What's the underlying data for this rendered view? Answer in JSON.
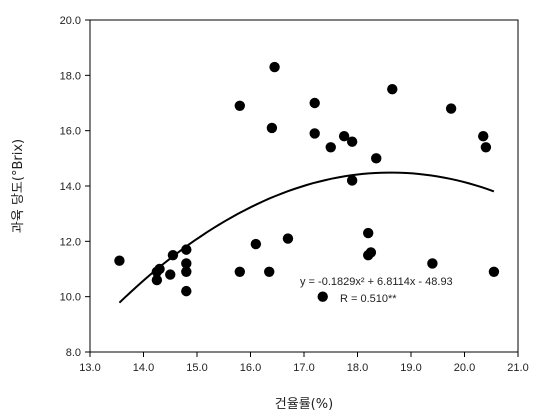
{
  "chart_data": {
    "type": "scatter",
    "title": "",
    "xlabel": "건율률(%)",
    "ylabel": "과육 당도(°Brix)",
    "xlim": [
      13.0,
      21.0
    ],
    "ylim": [
      8.0,
      20.0
    ],
    "x_ticks": [
      "13.0",
      "14.0",
      "15.0",
      "16.0",
      "17.0",
      "18.0",
      "19.0",
      "20.0",
      "21.0"
    ],
    "y_ticks": [
      "8.0",
      "10.0",
      "12.0",
      "14.0",
      "16.0",
      "18.0",
      "20.0"
    ],
    "grid": false,
    "legend": "none",
    "marker_color": "#000000",
    "series": [
      {
        "points": [
          {
            "x": 13.55,
            "y": 11.3
          },
          {
            "x": 14.25,
            "y": 10.9
          },
          {
            "x": 14.25,
            "y": 10.6
          },
          {
            "x": 14.3,
            "y": 11.0
          },
          {
            "x": 14.5,
            "y": 10.8
          },
          {
            "x": 14.55,
            "y": 11.5
          },
          {
            "x": 14.8,
            "y": 11.7
          },
          {
            "x": 14.8,
            "y": 11.2
          },
          {
            "x": 14.8,
            "y": 10.9
          },
          {
            "x": 14.8,
            "y": 10.2
          },
          {
            "x": 15.8,
            "y": 16.9
          },
          {
            "x": 15.8,
            "y": 10.9
          },
          {
            "x": 16.1,
            "y": 11.9
          },
          {
            "x": 16.35,
            "y": 10.9
          },
          {
            "x": 16.4,
            "y": 16.1
          },
          {
            "x": 16.45,
            "y": 18.3
          },
          {
            "x": 16.7,
            "y": 12.1
          },
          {
            "x": 17.2,
            "y": 17.0
          },
          {
            "x": 17.2,
            "y": 15.9
          },
          {
            "x": 17.35,
            "y": 10.0
          },
          {
            "x": 17.5,
            "y": 15.4
          },
          {
            "x": 17.75,
            "y": 15.8
          },
          {
            "x": 17.9,
            "y": 15.6
          },
          {
            "x": 17.9,
            "y": 14.2
          },
          {
            "x": 18.2,
            "y": 12.3
          },
          {
            "x": 18.2,
            "y": 11.5
          },
          {
            "x": 18.25,
            "y": 11.6
          },
          {
            "x": 18.35,
            "y": 15.0
          },
          {
            "x": 18.65,
            "y": 17.5
          },
          {
            "x": 19.4,
            "y": 11.2
          },
          {
            "x": 19.75,
            "y": 16.8
          },
          {
            "x": 20.35,
            "y": 15.8
          },
          {
            "x": 20.4,
            "y": 15.4
          },
          {
            "x": 20.55,
            "y": 10.9
          }
        ]
      }
    ],
    "trendline": {
      "type": "polynomial",
      "coefficients": {
        "a": -0.1829,
        "b": 6.8114,
        "c": -48.93
      },
      "x_range": [
        13.55,
        20.55
      ]
    },
    "annotations": {
      "equation": "y = -0.1829x² + 6.8114x - 48.93",
      "r_value": "R = 0.510**"
    }
  }
}
